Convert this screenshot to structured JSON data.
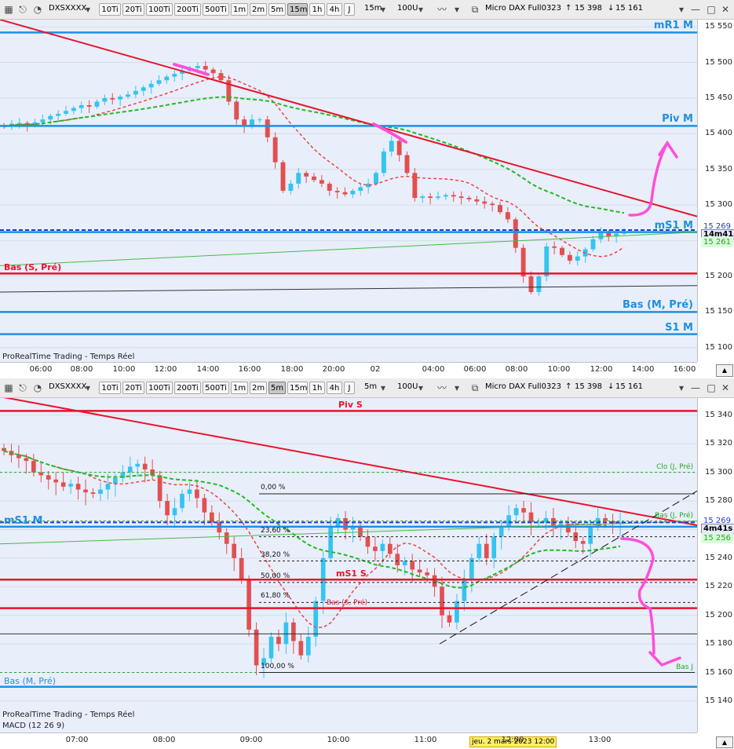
{
  "toolbar": {
    "symbol": "DXSXXXX",
    "timeframes": [
      "10Ti",
      "20Ti",
      "100Ti",
      "200Ti",
      "500Ti",
      "1m",
      "2m",
      "5m",
      "15m",
      "1h",
      "4h",
      "J"
    ],
    "instrument": "Micro DAX Full0323",
    "price_up": "15 398",
    "price_down": "15 161",
    "top_period": "15m",
    "bottom_period": "5m",
    "units": "100U",
    "top_active": "15m",
    "bottom_active": "5m"
  },
  "footer_text": "ProRealTime Trading - Temps Réel",
  "macd_label": "MACD (12 26 9)",
  "date_marker": "jeu. 2 mars 2023 12:00",
  "colors": {
    "bull": "#35c4f0",
    "bear": "#e05050",
    "red_line": "#e8132a",
    "blue_line": "#1e90e0",
    "ma_red": "#ef4444",
    "ma_green": "#22bb22",
    "highlight": "#ff4fd8"
  },
  "chart_data": [
    {
      "type": "candlestick",
      "timeframe": "15m",
      "ylim": [
        15080,
        15560
      ],
      "y_ticks": [
        "15 550",
        "15 500",
        "15 450",
        "15 400",
        "15 350",
        "15 300",
        "15 250",
        "15 200",
        "15 150",
        "15 100"
      ],
      "x_ticks": [
        "06:00",
        "08:00",
        "10:00",
        "12:00",
        "14:00",
        "16:00",
        "18:00",
        "20:00",
        "02",
        "04:00",
        "06:00",
        "08:00",
        "10:00",
        "12:00",
        "14:00",
        "16:00"
      ],
      "levels": [
        {
          "name": "mR1 M",
          "value": 15542,
          "color": "#1e90e0"
        },
        {
          "name": "Piv M",
          "value": 15411,
          "color": "#1e90e0"
        },
        {
          "name": "mS1 M",
          "value": 15262,
          "color": "#1e90e0"
        },
        {
          "name": "Bas (S, Pré)",
          "value": 15204,
          "color": "#e8132a"
        },
        {
          "name": "Bas (M, Pré)",
          "value": 15150,
          "color": "#1e90e0"
        },
        {
          "name": "S1 M",
          "value": 15119,
          "color": "#1e90e0"
        }
      ],
      "price_tags": [
        "15 269",
        "14m41s",
        "15 261"
      ],
      "closes": [
        15410,
        15414,
        15415,
        15412,
        15416,
        15420,
        15425,
        15428,
        15432,
        15436,
        15440,
        15438,
        15445,
        15450,
        15448,
        15452,
        15455,
        15460,
        15465,
        15470,
        15475,
        15480,
        15484,
        15488,
        15492,
        15495,
        15490,
        15485,
        15475,
        15445,
        15420,
        15410,
        15420,
        15420,
        15395,
        15360,
        15320,
        15330,
        15345,
        15340,
        15335,
        15330,
        15320,
        15318,
        15315,
        15320,
        15325,
        15330,
        15345,
        15375,
        15390,
        15370,
        15345,
        15310,
        15312,
        15310,
        15312,
        15314,
        15312,
        15310,
        15308,
        15305,
        15302,
        15300,
        15290,
        15280,
        15240,
        15200,
        15178,
        15200,
        15242,
        15240,
        15230,
        15222,
        15228,
        15238,
        15252,
        15262,
        15256,
        15260,
        15261
      ]
    },
    {
      "type": "candlestick",
      "timeframe": "5m",
      "ylim": [
        15118,
        15352
      ],
      "y_ticks": [
        "15 340",
        "15 320",
        "15 300",
        "15 280",
        "15 260",
        "15 240",
        "15 220",
        "15 200",
        "15 180",
        "15 160",
        "15 140"
      ],
      "x_ticks": [
        "07:00",
        "08:00",
        "09:00",
        "10:00",
        "11:00",
        "12:00",
        "13:00"
      ],
      "levels": [
        {
          "name": "Piv S",
          "value": 15343,
          "color": "#e8132a"
        },
        {
          "name": "mS1 M",
          "value": 15262,
          "color": "#1e90e0"
        },
        {
          "name": "mS1 S",
          "value": 15225,
          "color": "#e8132a"
        },
        {
          "name": "Bas (S, Pré)",
          "value": 15205,
          "color": "#e8132a"
        },
        {
          "name": "Bas (M, Pré)",
          "value": 15150,
          "color": "#1e90e0"
        },
        {
          "name": "Clo (J, Pré)",
          "value": 15300,
          "color": "#22aa22"
        },
        {
          "name": "Bas (J, Pré)",
          "value": 15266,
          "color": "#22aa22"
        },
        {
          "name": "Bas J",
          "value": 15160,
          "color": "#22aa22"
        }
      ],
      "fibonacci": [
        {
          "label": "0,00 %",
          "value": 15285
        },
        {
          "label": "23,60 %",
          "value": 15255
        },
        {
          "label": "38,20 %",
          "value": 15238
        },
        {
          "label": "50,00 %",
          "value": 15223
        },
        {
          "label": "61,80 %",
          "value": 15209
        },
        {
          "label": "100,00 %",
          "value": 15160
        }
      ],
      "price_tags": [
        "15 269",
        "4m41s",
        "15 256"
      ],
      "closes": [
        15315,
        15312,
        15310,
        15308,
        15300,
        15298,
        15295,
        15293,
        15290,
        15292,
        15288,
        15286,
        15285,
        15288,
        15292,
        15296,
        15300,
        15304,
        15306,
        15302,
        15298,
        15280,
        15270,
        15275,
        15285,
        15288,
        15282,
        15272,
        15265,
        15258,
        15250,
        15240,
        15225,
        15190,
        15165,
        15170,
        15185,
        15180,
        15195,
        15182,
        15172,
        15185,
        15210,
        15240,
        15262,
        15268,
        15260,
        15262,
        15255,
        15248,
        15245,
        15250,
        15243,
        15235,
        15238,
        15232,
        15230,
        15228,
        15220,
        15200,
        15195,
        15210,
        15225,
        15240,
        15250,
        15240,
        15255,
        15262,
        15270,
        15275,
        15272,
        15265,
        15265,
        15268,
        15262,
        15264,
        15258,
        15252,
        15250,
        15262,
        15268,
        15266,
        15264,
        15265
      ]
    }
  ]
}
